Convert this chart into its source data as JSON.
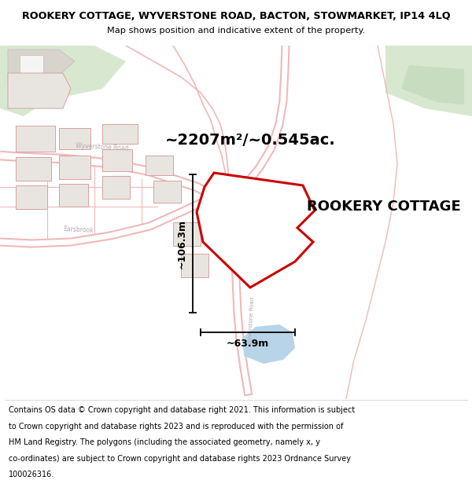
{
  "title_line1": "ROOKERY COTTAGE, WYVERSTONE ROAD, BACTON, STOWMARKET, IP14 4LQ",
  "title_line2": "Map shows position and indicative extent of the property.",
  "footer_lines": [
    "Contains OS data © Crown copyright and database right 2021. This information is subject",
    "to Crown copyright and database rights 2023 and is reproduced with the permission of",
    "HM Land Registry. The polygons (including the associated geometry, namely x, y",
    "co-ordinates) are subject to Crown copyright and database rights 2023 Ordnance Survey",
    "100026316."
  ],
  "area_label": "~2207m²/~0.545ac.",
  "property_label": "ROOKERY COTTAGE",
  "dim_width": "~63.9m",
  "dim_height": "~106.3m",
  "map_bg": "#f7f5f2",
  "road_outline_color": "#f0b8b8",
  "road_fill_color": "#ffffff",
  "building_fill": "#e8e5e0",
  "building_edge": "#d8a0a0",
  "property_fill": "#ffffff",
  "property_edge": "#cc0000",
  "green_fill": "#d8e8d0",
  "green_fill2": "#c8dcc0",
  "water_fill": "#b8d4e8",
  "road_label_color": "#aaaaaa",
  "dim_color": "#000000",
  "area_label_fontsize": 14,
  "property_label_fontsize": 13,
  "dim_fontsize": 9
}
